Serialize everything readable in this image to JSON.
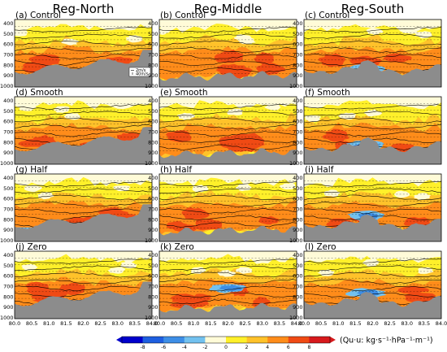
{
  "chart_data": {
    "type": "heatmap",
    "columns": [
      "Reg-North",
      "Reg-Middle",
      "Reg-South"
    ],
    "rows": [
      "Control",
      "Smooth",
      "Half",
      "Zero"
    ],
    "panels": [
      {
        "label": "(a) Control",
        "col": 0,
        "row": 0
      },
      {
        "label": "(b) Control",
        "col": 1,
        "row": 0
      },
      {
        "label": "(c) Control",
        "col": 2,
        "row": 0
      },
      {
        "label": "(d) Smooth",
        "col": 0,
        "row": 1
      },
      {
        "label": "(e) Smooth",
        "col": 1,
        "row": 1
      },
      {
        "label": "(f) Smooth",
        "col": 2,
        "row": 1
      },
      {
        "label": "(g) Half",
        "col": 0,
        "row": 2
      },
      {
        "label": "(h) Half",
        "col": 1,
        "row": 2
      },
      {
        "label": "(i) Half",
        "col": 2,
        "row": 2
      },
      {
        "label": "(j) Zero",
        "col": 0,
        "row": 3
      },
      {
        "label": "(k) Zero",
        "col": 1,
        "row": 3
      },
      {
        "label": "(l) Zero",
        "col": 2,
        "row": 3
      }
    ],
    "y_ticks": [
      "400",
      "500",
      "600",
      "700",
      "800",
      "900",
      "1000"
    ],
    "y_range": [
      1000,
      400
    ],
    "x_ticks": [
      "80.0",
      "80.5",
      "81.0",
      "81.5",
      "82.0",
      "82.5",
      "83.0",
      "83.5",
      "84.0"
    ],
    "x_range": [
      80.0,
      84.0
    ],
    "colorbar": {
      "ticks": [
        "-8",
        "-6",
        "-4",
        "-2",
        "0",
        "2",
        "4",
        "6",
        "8"
      ],
      "range": [
        -8,
        8
      ],
      "colors": [
        "#0000cc",
        "#1e5fe0",
        "#3d8ee6",
        "#72c1ef",
        "#fffbd8",
        "#fff02a",
        "#ffc22a",
        "#ff8c1a",
        "#f04a14",
        "#d7191c"
      ],
      "unit_label": "(Qu·u: kg·s⁻¹·hPa⁻¹·m⁻¹)"
    },
    "wind_legend": [
      "2m/s",
      "40m/s"
    ]
  },
  "colors": {
    "terrain": "#8c8c8c",
    "pale": "#fffbd8",
    "yellow": "#fff02a",
    "orange": "#ffc22a",
    "dark_orange": "#ff8c1a",
    "red": "#f04a14",
    "blue": "#3d8ee6",
    "light_blue": "#72c1ef",
    "dark_blue": "#1e5fe0",
    "contour": "#000000"
  }
}
